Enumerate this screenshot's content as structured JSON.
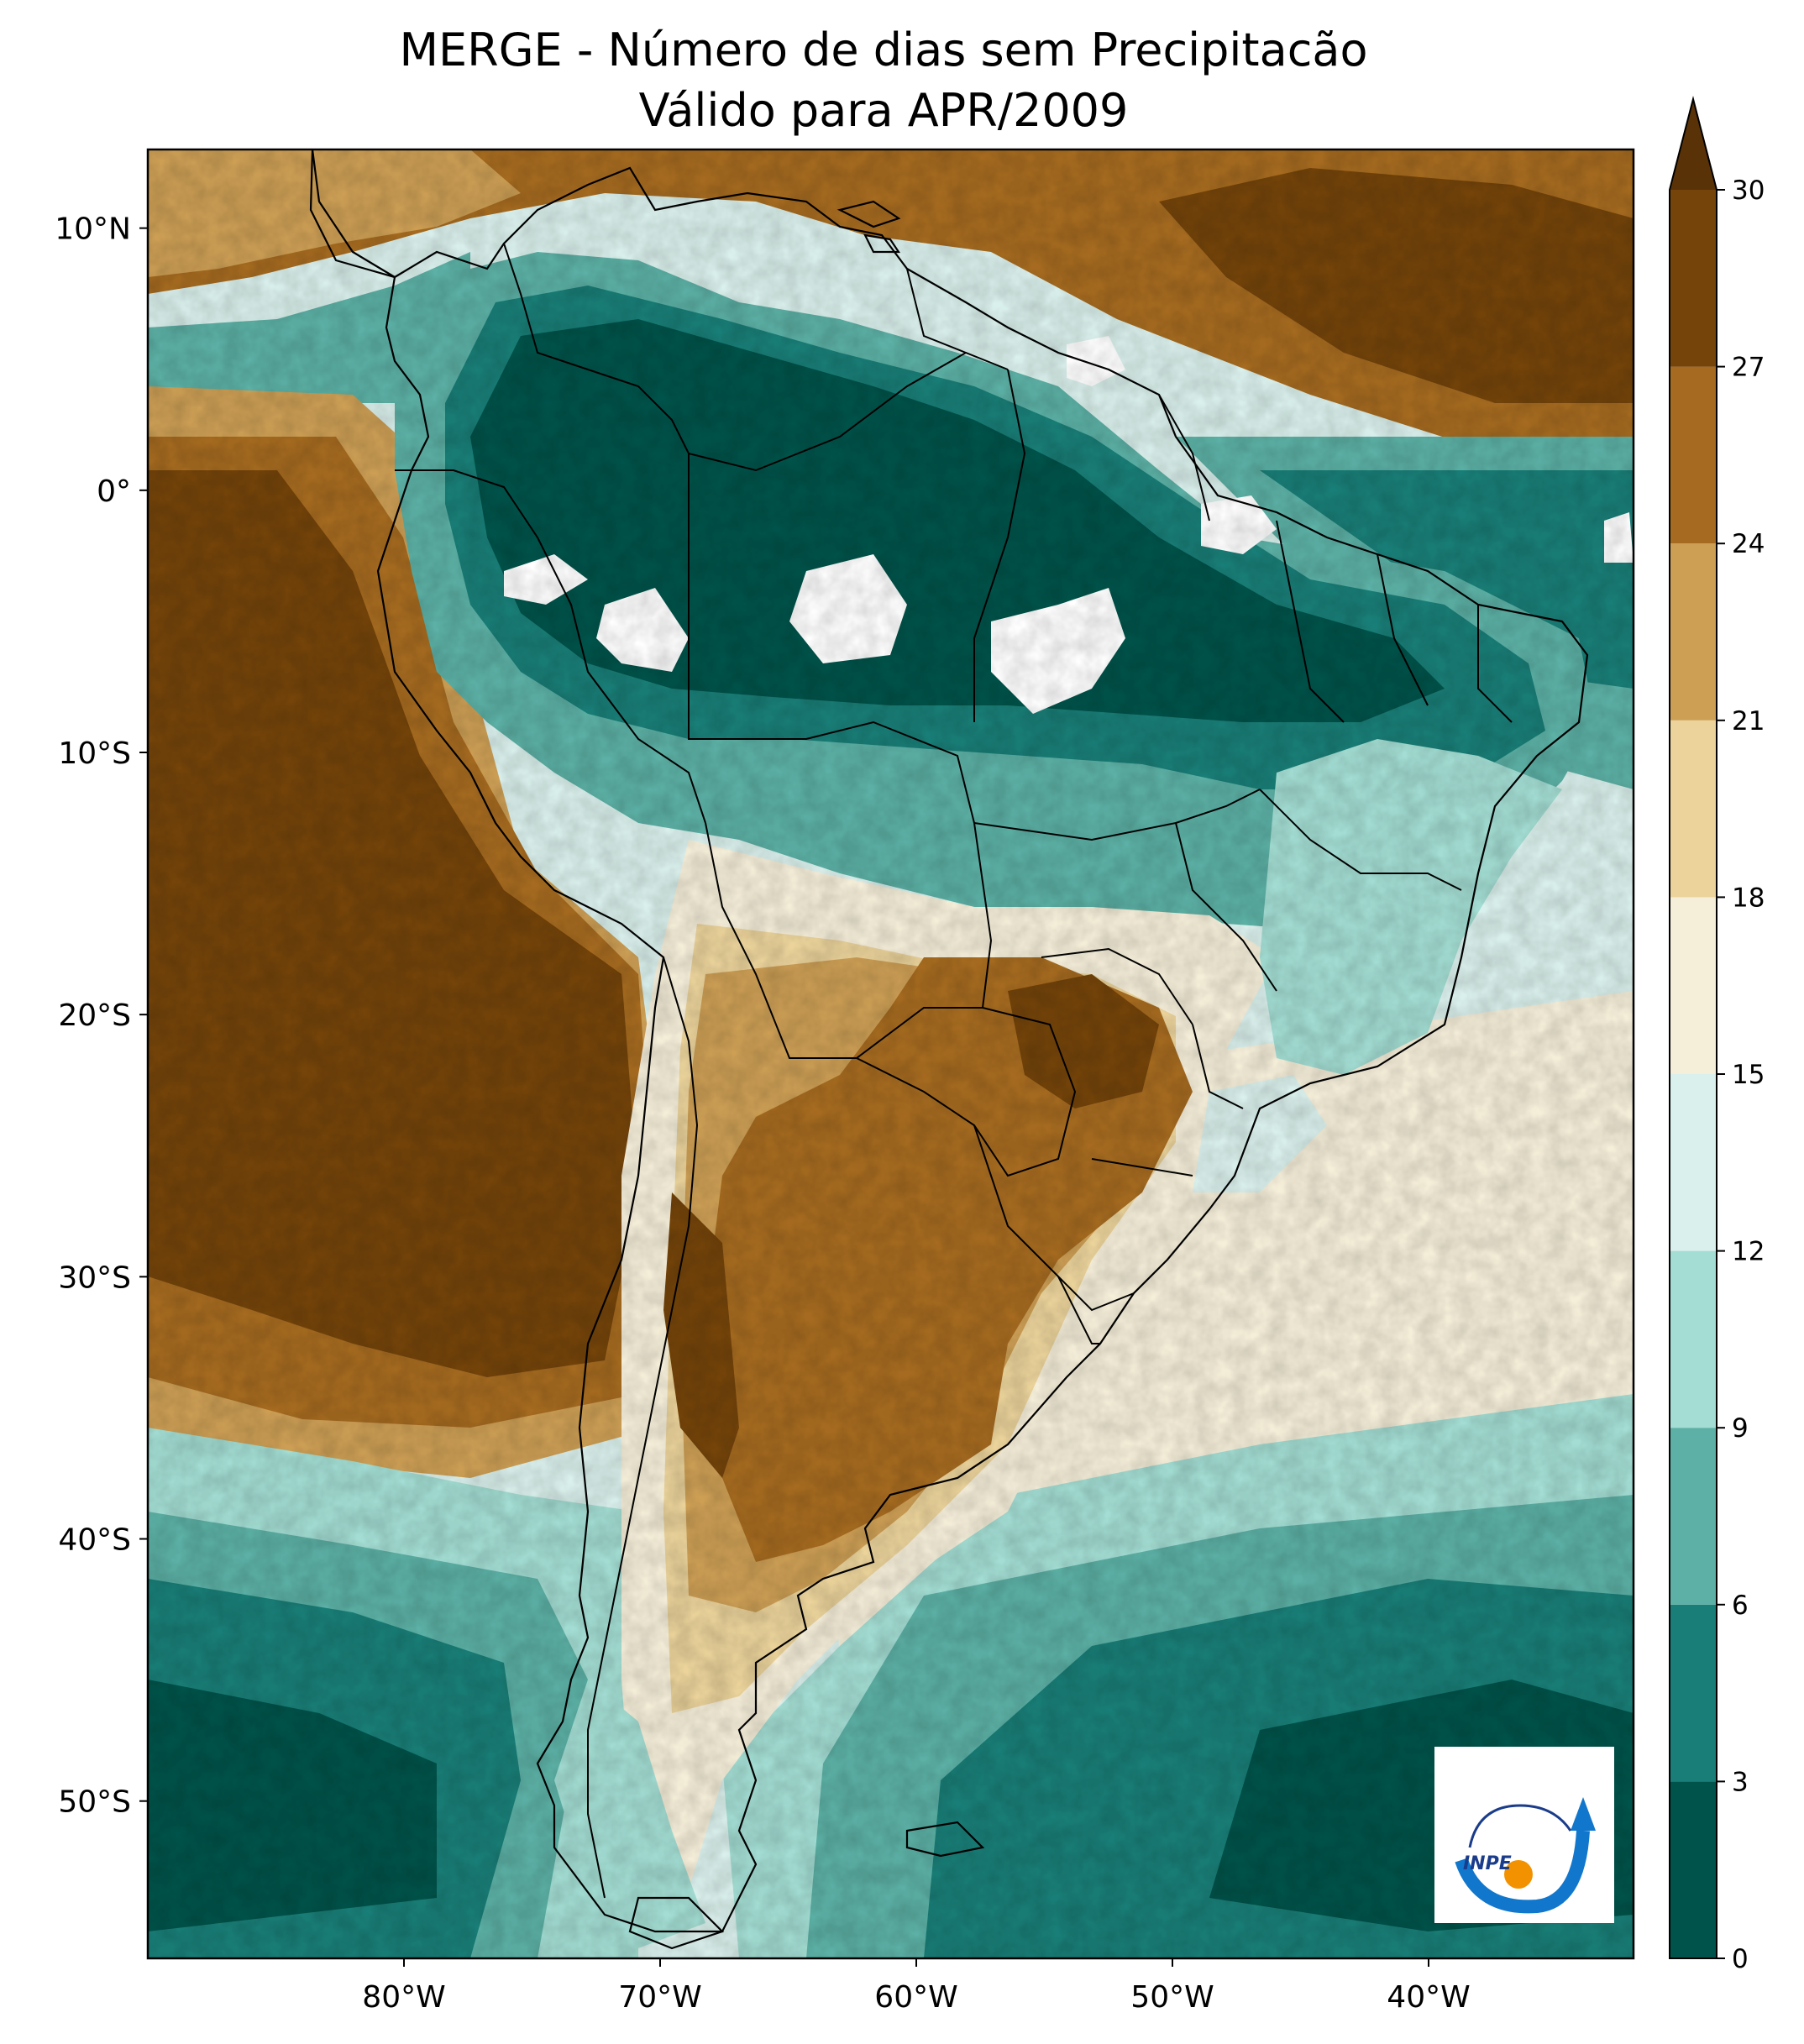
{
  "title": {
    "line1": "MERGE - Número de dias sem Precipitacão",
    "line2": "Válido para APR/2009"
  },
  "map": {
    "lat_range": [
      -56,
      13
    ],
    "lon_range": [
      -90,
      -32
    ],
    "lat_ticks": [
      {
        "value": 10,
        "label": "10°N"
      },
      {
        "value": 0,
        "label": "0°"
      },
      {
        "value": -10,
        "label": "10°S"
      },
      {
        "value": -20,
        "label": "20°S"
      },
      {
        "value": -30,
        "label": "30°S"
      },
      {
        "value": -40,
        "label": "40°S"
      },
      {
        "value": -50,
        "label": "50°S"
      }
    ],
    "lon_ticks": [
      {
        "value": -80,
        "label": "80°W"
      },
      {
        "value": -70,
        "label": "70°W"
      },
      {
        "value": -60,
        "label": "60°W"
      },
      {
        "value": -50,
        "label": "50°W"
      },
      {
        "value": -40,
        "label": "40°W"
      }
    ]
  },
  "colorbar": {
    "extend": "max",
    "levels": [
      {
        "from": 0,
        "to": 3,
        "color": "#00534a"
      },
      {
        "from": 3,
        "to": 6,
        "color": "#197e77"
      },
      {
        "from": 6,
        "to": 9,
        "color": "#5cb0a5"
      },
      {
        "from": 9,
        "to": 12,
        "color": "#a3ddd3"
      },
      {
        "from": 12,
        "to": 15,
        "color": "#daf0ec"
      },
      {
        "from": 15,
        "to": 18,
        "color": "#f5eed9"
      },
      {
        "from": 18,
        "to": 21,
        "color": "#ebd39b"
      },
      {
        "from": 21,
        "to": 24,
        "color": "#cd9f55"
      },
      {
        "from": 24,
        "to": 27,
        "color": "#a66b20"
      },
      {
        "from": 27,
        "to": 30,
        "color": "#74440a"
      }
    ],
    "over_color": "#5a3207",
    "tick_labels": [
      "0",
      "3",
      "6",
      "9",
      "12",
      "15",
      "18",
      "21",
      "24",
      "27",
      "30"
    ]
  },
  "logo": {
    "text": "INPE",
    "name": "inpe-logo"
  }
}
